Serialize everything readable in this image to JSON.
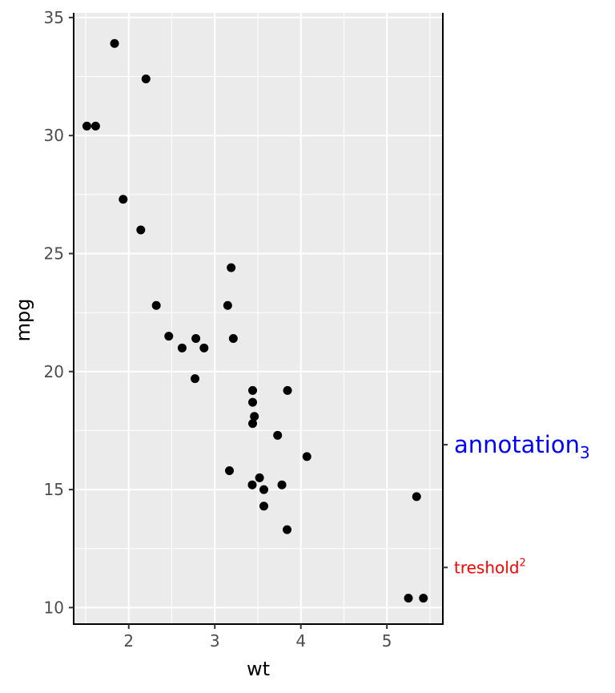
{
  "chart_data": {
    "type": "scatter",
    "xlabel": "wt",
    "ylabel": "mpg",
    "xlim": [
      1.36,
      5.65
    ],
    "ylim": [
      9.3,
      35.2
    ],
    "x_ticks": [
      2,
      3,
      4,
      5
    ],
    "y_ticks": [
      10,
      15,
      20,
      25,
      30,
      35
    ],
    "grid": true,
    "background": "#ebebeb",
    "point_color": "#000000",
    "points": [
      {
        "x": 2.62,
        "y": 21.0
      },
      {
        "x": 2.875,
        "y": 21.0
      },
      {
        "x": 2.32,
        "y": 22.8
      },
      {
        "x": 3.215,
        "y": 21.4
      },
      {
        "x": 3.44,
        "y": 18.7
      },
      {
        "x": 3.46,
        "y": 18.1
      },
      {
        "x": 3.57,
        "y": 14.3
      },
      {
        "x": 3.19,
        "y": 24.4
      },
      {
        "x": 3.15,
        "y": 22.8
      },
      {
        "x": 3.44,
        "y": 19.2
      },
      {
        "x": 3.44,
        "y": 17.8
      },
      {
        "x": 4.07,
        "y": 16.4
      },
      {
        "x": 3.73,
        "y": 17.3
      },
      {
        "x": 3.78,
        "y": 15.2
      },
      {
        "x": 5.25,
        "y": 10.4
      },
      {
        "x": 5.424,
        "y": 10.4
      },
      {
        "x": 5.345,
        "y": 14.7
      },
      {
        "x": 2.2,
        "y": 32.4
      },
      {
        "x": 1.615,
        "y": 30.4
      },
      {
        "x": 1.835,
        "y": 33.9
      },
      {
        "x": 2.465,
        "y": 21.5
      },
      {
        "x": 3.52,
        "y": 15.5
      },
      {
        "x": 3.435,
        "y": 15.2
      },
      {
        "x": 3.84,
        "y": 13.3
      },
      {
        "x": 3.845,
        "y": 19.2
      },
      {
        "x": 1.935,
        "y": 27.3
      },
      {
        "x": 2.14,
        "y": 26.0
      },
      {
        "x": 1.513,
        "y": 30.4
      },
      {
        "x": 3.17,
        "y": 15.8
      },
      {
        "x": 2.77,
        "y": 19.7
      },
      {
        "x": 3.57,
        "y": 15.0
      },
      {
        "x": 2.78,
        "y": 21.4
      }
    ],
    "annotations": [
      {
        "y": 16.9,
        "text": "annotation",
        "sub": "3",
        "color": "#0000ff"
      },
      {
        "y": 11.7,
        "text": "treshold",
        "sup": "2",
        "color": "#ff0000"
      }
    ]
  }
}
